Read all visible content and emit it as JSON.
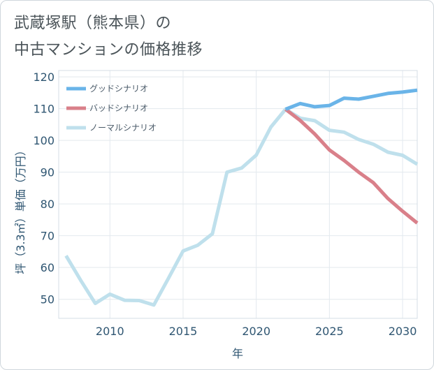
{
  "title_lines": [
    "武蔵塚駅（熊本県）の",
    "中古マンションの価格推移"
  ],
  "chart_data": {
    "type": "line",
    "title": "武蔵塚駅（熊本県）の中古マンションの価格推移",
    "xlabel": "年",
    "ylabel": "坪（3.3㎡）単価（万円）",
    "xlim": [
      2006.5,
      2031
    ],
    "ylim": [
      44,
      122
    ],
    "xticks": [
      2010,
      2015,
      2020,
      2025,
      2030
    ],
    "yticks": [
      50,
      60,
      70,
      80,
      90,
      100,
      110,
      120
    ],
    "grid": true,
    "legend_position": "top-left",
    "series": [
      {
        "name": "グッドシナリオ",
        "color": "#6ab4e8",
        "x": [
          2022,
          2023,
          2024,
          2025,
          2026,
          2027,
          2028,
          2029,
          2030,
          2031
        ],
        "y": [
          109.8,
          111.6,
          110.6,
          111.0,
          113.3,
          113.0,
          113.9,
          114.8,
          115.2,
          115.8
        ]
      },
      {
        "name": "バッドシナリオ",
        "color": "#d9808a",
        "x": [
          2022,
          2023,
          2024,
          2025,
          2026,
          2027,
          2028,
          2029,
          2030,
          2031
        ],
        "y": [
          109.8,
          106.3,
          102.0,
          97.0,
          93.7,
          90.0,
          86.7,
          81.7,
          77.7,
          74.0
        ]
      },
      {
        "name": "ノーマルシナリオ",
        "color": "#bfe0ec",
        "x": [
          2007,
          2008,
          2009,
          2010,
          2011,
          2012,
          2013,
          2014,
          2015,
          2016,
          2017,
          2018,
          2019,
          2020,
          2021,
          2022,
          2023,
          2024,
          2025,
          2026,
          2027,
          2028,
          2029,
          2030,
          2031
        ],
        "y": [
          63.7,
          56.0,
          48.7,
          51.6,
          49.7,
          49.6,
          48.2,
          56.6,
          65.2,
          67.0,
          70.6,
          90.0,
          91.3,
          95.4,
          104.2,
          109.8,
          107.0,
          106.2,
          103.2,
          102.6,
          100.3,
          98.8,
          96.3,
          95.3,
          92.5
        ]
      }
    ]
  }
}
